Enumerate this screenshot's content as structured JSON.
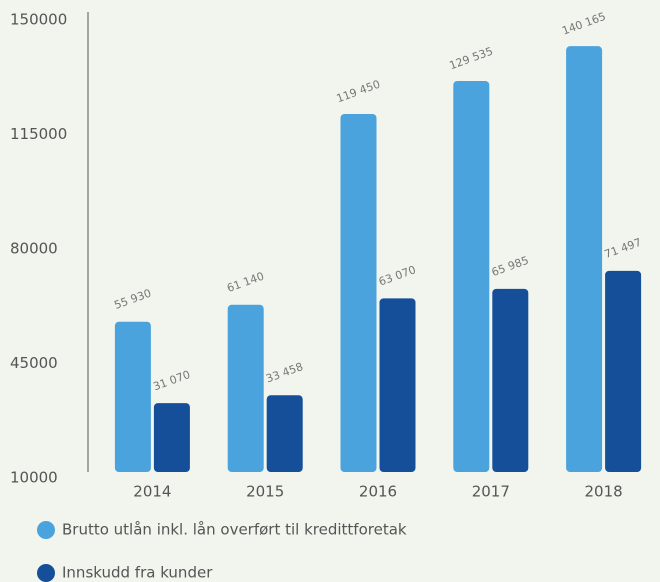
{
  "chart_data": {
    "type": "bar",
    "categories": [
      "2014",
      "2015",
      "2016",
      "2017",
      "2018"
    ],
    "series": [
      {
        "name": "Brutto utlån inkl. lån overført til kredittforetak",
        "color": "#4aa3dc",
        "values": [
          55930,
          61140,
          119450,
          129535,
          140165
        ],
        "value_labels": [
          "55 930",
          "61 140",
          "119 450",
          "129 535",
          "140 165"
        ]
      },
      {
        "name": "Innskudd fra kunder",
        "color": "#154f9a",
        "values": [
          31070,
          33458,
          63070,
          65985,
          71497
        ],
        "value_labels": [
          "31 070",
          "33 458",
          "63 070",
          "65 985",
          "71 497"
        ]
      }
    ],
    "ylim": [
      10000,
      150000
    ],
    "yticks": [
      10000,
      45000,
      80000,
      115000,
      150000
    ]
  }
}
